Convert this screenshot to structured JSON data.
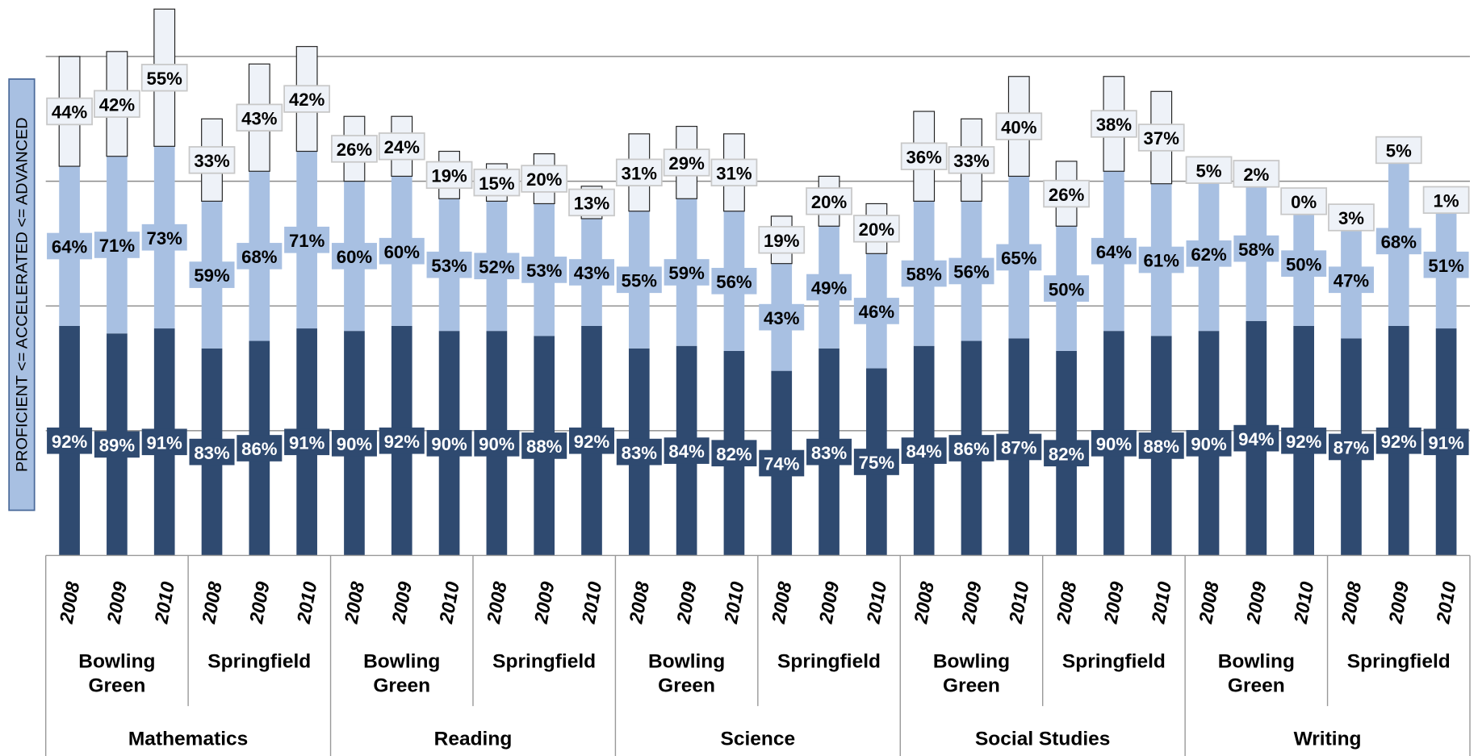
{
  "chart_data": {
    "type": "stacked-bar",
    "y_label": "PROFICIENT <= ACCELERATED <= ADVANCED",
    "ylim": [
      0,
      220
    ],
    "yticks": [
      50,
      100,
      150,
      200
    ],
    "grid": true,
    "groups": [
      {
        "name": "Mathematics",
        "subgroups": [
          {
            "name": "Bowling Green",
            "categories": [
              "2008",
              "2009",
              "2010"
            ]
          },
          {
            "name": "Springfield",
            "categories": [
              "2008",
              "2009",
              "2010"
            ]
          }
        ]
      },
      {
        "name": "Reading",
        "subgroups": [
          {
            "name": "Bowling Green",
            "categories": [
              "2008",
              "2009",
              "2010"
            ]
          },
          {
            "name": "Springfield",
            "categories": [
              "2008",
              "2009",
              "2010"
            ]
          }
        ]
      },
      {
        "name": "Science",
        "subgroups": [
          {
            "name": "Bowling Green",
            "categories": [
              "2008",
              "2009",
              "2010"
            ]
          },
          {
            "name": "Springfield",
            "categories": [
              "2008",
              "2009",
              "2010"
            ]
          }
        ]
      },
      {
        "name": "Social Studies",
        "subgroups": [
          {
            "name": "Bowling Green",
            "categories": [
              "2008",
              "2009",
              "2010"
            ]
          },
          {
            "name": "Springfield",
            "categories": [
              "2008",
              "2009",
              "2010"
            ]
          }
        ]
      },
      {
        "name": "Writing",
        "subgroups": [
          {
            "name": "Bowling Green",
            "categories": [
              "2008",
              "2009",
              "2010"
            ]
          },
          {
            "name": "Springfield",
            "categories": [
              "2008",
              "2009",
              "2010"
            ]
          }
        ]
      }
    ],
    "series": [
      {
        "color": "#2f4a70",
        "values": [
          92,
          89,
          91,
          83,
          86,
          91,
          90,
          92,
          90,
          90,
          88,
          92,
          83,
          84,
          82,
          74,
          83,
          75,
          84,
          86,
          87,
          82,
          90,
          88,
          90,
          94,
          92,
          87,
          92,
          91
        ],
        "value_labels": [
          "92%",
          "89%",
          "91%",
          "83%",
          "86%",
          "91%",
          "90%",
          "92%",
          "90%",
          "90%",
          "88%",
          "92%",
          "83%",
          "84%",
          "82%",
          "74%",
          "83%",
          "75%",
          "84%",
          "86%",
          "87%",
          "82%",
          "90%",
          "88%",
          "90%",
          "94%",
          "92%",
          "87%",
          "92%",
          "91%"
        ]
      },
      {
        "color": "#a8c0e2",
        "values": [
          64,
          71,
          73,
          59,
          68,
          71,
          60,
          60,
          53,
          52,
          53,
          43,
          55,
          59,
          56,
          43,
          49,
          46,
          58,
          56,
          65,
          50,
          64,
          61,
          62,
          58,
          50,
          47,
          68,
          51
        ],
        "value_labels": [
          "64%",
          "71%",
          "73%",
          "59%",
          "68%",
          "71%",
          "60%",
          "60%",
          "53%",
          "52%",
          "53%",
          "43%",
          "55%",
          "59%",
          "56%",
          "43%",
          "49%",
          "46%",
          "58%",
          "56%",
          "65%",
          "50%",
          "64%",
          "61%",
          "62%",
          "58%",
          "50%",
          "47%",
          "68%",
          "51%"
        ]
      },
      {
        "color": "#eef2f8",
        "values": [
          44,
          42,
          55,
          33,
          43,
          42,
          26,
          24,
          19,
          15,
          20,
          13,
          31,
          29,
          31,
          19,
          20,
          20,
          36,
          33,
          40,
          26,
          38,
          37,
          5,
          2,
          0,
          3,
          5,
          1
        ],
        "value_labels": [
          "44%",
          "42%",
          "55%",
          "33%",
          "43%",
          "42%",
          "26%",
          "24%",
          "19%",
          "15%",
          "20%",
          "13%",
          "31%",
          "29%",
          "31%",
          "19%",
          "20%",
          "20%",
          "36%",
          "33%",
          "40%",
          "26%",
          "38%",
          "37%",
          "5%",
          "2%",
          "0%",
          "3%",
          "5%",
          "1%"
        ]
      }
    ]
  }
}
